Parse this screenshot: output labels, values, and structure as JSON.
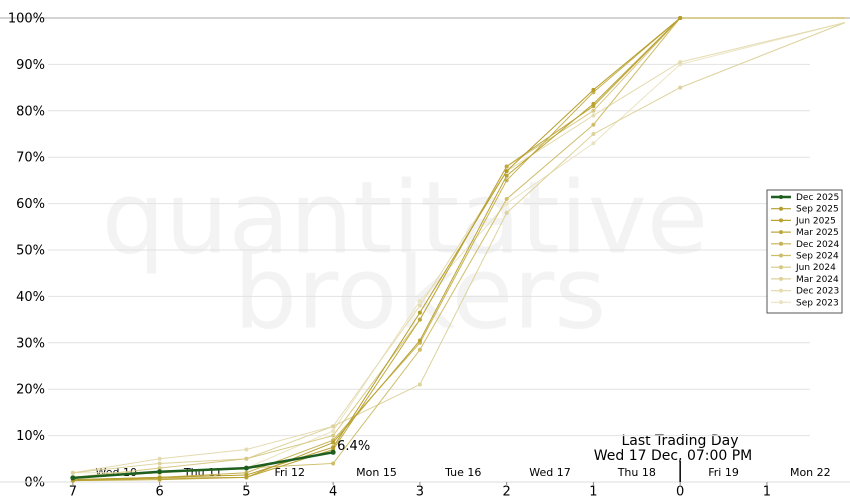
{
  "chart_data": {
    "type": "line",
    "watermark": [
      "quantitative",
      "brokers"
    ],
    "x": [
      7,
      6,
      5,
      4,
      3,
      2,
      1,
      0,
      -1.9
    ],
    "xlim": [
      7.84,
      -1.9
    ],
    "xticks": [
      7,
      6,
      5,
      4,
      3,
      2,
      1,
      0,
      {
        "value": -1,
        "label": "1"
      }
    ],
    "date_ticks": [
      {
        "value": 6.5,
        "label": "Wed 10"
      },
      {
        "value": 5.5,
        "label": "Thu 11"
      },
      {
        "value": 4.5,
        "label": "Fri 12"
      },
      {
        "value": 3.5,
        "label": "Mon 15"
      },
      {
        "value": 2.5,
        "label": "Tue 16"
      },
      {
        "value": 1.5,
        "label": "Wed 17"
      },
      {
        "value": 0.5,
        "label": "Thu 18"
      },
      {
        "value": -0.5,
        "label": "Fri 19"
      },
      {
        "value": -1.5,
        "label": "Mon 22"
      }
    ],
    "ylim": [
      0,
      100
    ],
    "yticks": [
      {
        "value": 0,
        "label": "0%"
      },
      {
        "value": 10,
        "label": "10%"
      },
      {
        "value": 20,
        "label": "20%"
      },
      {
        "value": 30,
        "label": "30%"
      },
      {
        "value": 40,
        "label": "40%"
      },
      {
        "value": 50,
        "label": "50%"
      },
      {
        "value": 60,
        "label": "60%"
      },
      {
        "value": 70,
        "label": "70%"
      },
      {
        "value": 80,
        "label": "80%"
      },
      {
        "value": 90,
        "label": "90%"
      },
      {
        "value": 100,
        "label": "100%"
      }
    ],
    "grid": true,
    "legend": "right",
    "annotation": [
      "Last Trading Day",
      "Wed 17 Dec, 07:00 PM"
    ],
    "series": [
      {
        "name": "Dec 2025",
        "color": "#1e5e1e",
        "values": [
          0.9,
          2.2,
          3.0,
          6.4,
          null,
          null,
          null,
          null,
          null
        ],
        "value_labels": [
          null,
          null,
          null,
          "6.4%",
          null,
          null,
          null,
          null,
          null
        ]
      },
      {
        "name": "Sep 2025",
        "color": "#b59d2a",
        "values": [
          0.5,
          1,
          1.5,
          7.5,
          36.5,
          67,
          84.5,
          100,
          100
        ]
      },
      {
        "name": "Jun 2025",
        "color": "#b9a232",
        "values": [
          0.3,
          0.8,
          1,
          8.5,
          30.5,
          66,
          81.5,
          100,
          100
        ]
      },
      {
        "name": "Mar 2025",
        "color": "#bea83d",
        "values": [
          0.3,
          0.5,
          1,
          7,
          35,
          68,
          81,
          100,
          100
        ]
      },
      {
        "name": "Dec 2024",
        "color": "#c6b252",
        "values": [
          0.5,
          1,
          2,
          9,
          30,
          65,
          84,
          100,
          100
        ]
      },
      {
        "name": "Sep 2024",
        "color": "#cebd6a",
        "values": [
          1,
          2,
          3,
          4,
          28.5,
          61,
          77,
          100,
          100
        ]
      },
      {
        "name": "Jun 2024",
        "color": "#d6c884",
        "values": [
          1,
          3,
          5,
          10,
          35,
          68,
          80,
          100,
          100
        ]
      },
      {
        "name": "Mar 2024",
        "color": "#ddd29c",
        "values": [
          2,
          4,
          5,
          12,
          21,
          58,
          75,
          85,
          99
        ]
      },
      {
        "name": "Dec 2023",
        "color": "#e4dbb0",
        "values": [
          2,
          5,
          7,
          12,
          38,
          67,
          79,
          90.5,
          99
        ]
      },
      {
        "name": "Sep 2023",
        "color": "#eae3c3",
        "values": [
          2,
          2,
          3,
          11,
          39,
          60,
          73,
          90,
          99
        ]
      }
    ]
  }
}
